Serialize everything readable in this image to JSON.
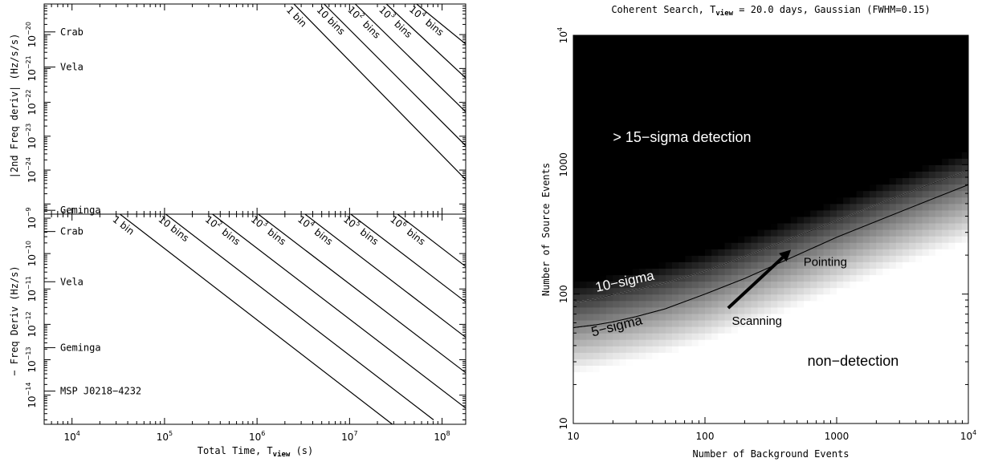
{
  "chart_data": [
    {
      "id": "top_left",
      "type": "line",
      "title": "",
      "ylabel": "|2nd Freq deriv| (Hz/s/s)",
      "xlabel": "",
      "x_log": true,
      "y_log": true,
      "xlim": [
        5000,
        180000000
      ],
      "ylim": [
        5e-26,
        8e-20
      ],
      "y_ticks": [
        {
          "value": 1e-20,
          "base": "10",
          "exp": "−20"
        },
        {
          "value": 1e-21,
          "base": "10",
          "exp": "−21"
        },
        {
          "value": 1e-22,
          "base": "10",
          "exp": "−22"
        },
        {
          "value": 1e-23,
          "base": "10",
          "exp": "−23"
        },
        {
          "value": 1e-24,
          "base": "10",
          "exp": "−24"
        }
      ],
      "markers": [
        {
          "label": "Crab",
          "value": 1.2e-20
        },
        {
          "label": "Vela",
          "value": 1.1e-21
        },
        {
          "label": "Geminga",
          "value": 6.5e-26
        }
      ],
      "lines": [
        {
          "label": "1 bin",
          "label_base": "",
          "label_exp": "",
          "label_word": "1 bin",
          "line_x": [
            2500000.0,
            180000000.0
          ],
          "line_y": [
            8e-20,
            5.25e-25
          ]
        },
        {
          "label": "10 bins",
          "label_base": "",
          "label_exp": "",
          "label_word": "10 bins",
          "line_x": [
            5300000.0,
            180000000.0
          ],
          "line_y": [
            8e-20,
            5.25e-24
          ]
        },
        {
          "label": "10^2 bins",
          "label_base": "10",
          "label_exp": "2",
          "label_word": "bins",
          "line_x": [
            11500000.0,
            180000000.0
          ],
          "line_y": [
            8e-20,
            5.25e-23
          ]
        },
        {
          "label": "10^3 bins",
          "label_base": "10",
          "label_exp": "3",
          "label_word": "bins",
          "line_x": [
            25000000.0,
            180000000.0
          ],
          "line_y": [
            8e-20,
            5.25e-22
          ]
        },
        {
          "label": "10^4 bins",
          "label_base": "10",
          "label_exp": "4",
          "label_word": "bins",
          "line_x": [
            53000000.0,
            180000000.0
          ],
          "line_y": [
            8e-20,
            5.25e-21
          ]
        }
      ]
    },
    {
      "id": "bottom_left",
      "type": "line",
      "title": "",
      "ylabel": "− Freq Deriv (Hz/s)",
      "xlabel": "Total Time, T_view (s)",
      "xlabel_main": "Total Time, T",
      "xlabel_sub": "view",
      "xlabel_tail": " (s)",
      "x_log": true,
      "y_log": true,
      "xlim": [
        5000,
        180000000
      ],
      "ylim": [
        1.5e-15,
        1.3e-09
      ],
      "x_ticks": [
        {
          "value": 10000.0,
          "base": "10",
          "exp": "4"
        },
        {
          "value": 100000.0,
          "base": "10",
          "exp": "5"
        },
        {
          "value": 1000000.0,
          "base": "10",
          "exp": "6"
        },
        {
          "value": 10000000.0,
          "base": "10",
          "exp": "7"
        },
        {
          "value": 100000000.0,
          "base": "10",
          "exp": "8"
        }
      ],
      "y_ticks": [
        {
          "value": 1e-09,
          "base": "10",
          "exp": "−9"
        },
        {
          "value": 1e-10,
          "base": "10",
          "exp": "−10"
        },
        {
          "value": 1e-11,
          "base": "10",
          "exp": "−11"
        },
        {
          "value": 1e-12,
          "base": "10",
          "exp": "−12"
        },
        {
          "value": 1e-13,
          "base": "10",
          "exp": "−13"
        },
        {
          "value": 1e-14,
          "base": "10",
          "exp": "−14"
        }
      ],
      "markers": [
        {
          "label": "Crab",
          "value": 4.2e-10
        },
        {
          "label": "Vela",
          "value": 1.6e-11
        },
        {
          "label": "Geminga",
          "value": 2.2e-13
        },
        {
          "label": "MSP J0218−4232",
          "value": 1.3e-14
        }
      ],
      "lines": [
        {
          "label": "1 bin",
          "label_base": "",
          "label_exp": "",
          "label_word": "1 bin",
          "line_x": [
            33000.0,
            29000000.0
          ],
          "line_y": [
            1.3e-09,
            1.5e-15
          ]
        },
        {
          "label": "10 bins",
          "label_base": "",
          "label_exp": "",
          "label_word": "10 bins",
          "line_x": [
            103000.0,
            81000000.0
          ],
          "line_y": [
            1.3e-09,
            2e-15
          ]
        },
        {
          "label": "10^2 bins",
          "label_base": "10",
          "label_exp": "2",
          "label_word": "bins",
          "line_x": [
            330000.0,
            180000000.0
          ],
          "line_y": [
            1.3e-09,
            4.3e-15
          ]
        },
        {
          "label": "10^3 bins",
          "label_base": "10",
          "label_exp": "3",
          "label_word": "bins",
          "line_x": [
            1030000.0,
            180000000.0
          ],
          "line_y": [
            1.3e-09,
            4.3e-14
          ]
        },
        {
          "label": "10^4 bins",
          "label_base": "10",
          "label_exp": "4",
          "label_word": "bins",
          "line_x": [
            3300000.0,
            180000000.0
          ],
          "line_y": [
            1.3e-09,
            4.3e-13
          ]
        },
        {
          "label": "10^5 bins",
          "label_base": "10",
          "label_exp": "5",
          "label_word": "bins",
          "line_x": [
            10300000.0,
            180000000.0
          ],
          "line_y": [
            1.3e-09,
            4.3e-12
          ]
        },
        {
          "label": "10^6 bins",
          "label_base": "10",
          "label_exp": "6",
          "label_word": "bins",
          "line_x": [
            33000000.0,
            180000000.0
          ],
          "line_y": [
            1.3e-09,
            4.3e-11
          ]
        }
      ]
    },
    {
      "id": "right",
      "type": "heatmap",
      "title": "Coherent Search, T_view = 20.0 days, Gaussian (FWHM=0.15)",
      "title_pre": "Coherent Search, T",
      "title_sub": "view",
      "title_post": " = 20.0 days, Gaussian (FWHM=0.15)",
      "xlabel": "Number of Background Events",
      "ylabel": "Number of Source Events",
      "x_log": true,
      "y_log": true,
      "xlim": [
        10,
        10000
      ],
      "ylim": [
        10,
        10000
      ],
      "x_ticks": [
        {
          "value": 10,
          "base": "10",
          "exp": ""
        },
        {
          "value": 100,
          "base": "100",
          "exp": ""
        },
        {
          "value": 1000,
          "base": "1000",
          "exp": ""
        },
        {
          "value": 10000,
          "base": "10",
          "exp": "4"
        }
      ],
      "y_ticks": [
        {
          "value": 10,
          "base": "10",
          "exp": ""
        },
        {
          "value": 100,
          "base": "100",
          "exp": ""
        },
        {
          "value": 1000,
          "base": "1000",
          "exp": ""
        },
        {
          "value": 10000,
          "base": "10",
          "exp": "4"
        }
      ],
      "contours": [
        {
          "label": "10-sigma",
          "x": [
            10,
            15,
            20,
            30,
            50,
            100,
            200,
            500,
            1000,
            2000,
            5000,
            10000
          ],
          "y": [
            86,
            92,
            99,
            108,
            122,
            150,
            195,
            280,
            370,
            490,
            700,
            900
          ]
        },
        {
          "label": "5-sigma",
          "x": [
            10,
            15,
            20,
            30,
            50,
            100,
            200,
            500,
            1000,
            2000,
            5000,
            10000
          ],
          "y": [
            55,
            58,
            61,
            67,
            77,
            100,
            132,
            200,
            275,
            365,
            530,
            700
          ]
        }
      ],
      "annotations": [
        {
          "text": "> 15−sigma detection",
          "x": 20,
          "y": 1500
        },
        {
          "text": "10−sigma",
          "x": 15,
          "y": 104
        },
        {
          "text": "5−sigma",
          "x": 14,
          "y": 47
        },
        {
          "text": "Pointing",
          "x": 560,
          "y": 165
        },
        {
          "text": "Scanning",
          "x": 160,
          "y": 58
        },
        {
          "text": "non−detection",
          "x": 600,
          "y": 28
        }
      ],
      "arrow": {
        "from": [
          150,
          78
        ],
        "to": [
          450,
          220
        ]
      }
    }
  ]
}
